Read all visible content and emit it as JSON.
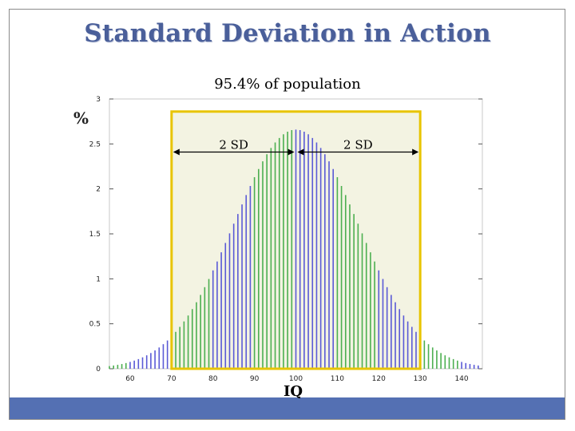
{
  "slide": {
    "title": "Standard Deviation in Action",
    "subtitle": "95.4% of population"
  },
  "colors": {
    "title": "#4a5f9a",
    "footer": "#5470b3",
    "green_bar": "#4caf50",
    "blue_bar": "#5a5ad6",
    "highlight_box": "#e8c400",
    "shaded_region": "#f3f3e2"
  },
  "chart_data": {
    "type": "bar",
    "xlabel": "IQ",
    "ylabel": "%",
    "xlim": [
      55,
      145
    ],
    "ylim": [
      0,
      3
    ],
    "x_ticks": [
      60,
      70,
      80,
      90,
      100,
      110,
      120,
      130,
      140
    ],
    "y_ticks": [
      0,
      0.5,
      1,
      1.5,
      2,
      2.5,
      3
    ],
    "x_tick_labels": [
      "60",
      "70",
      "80",
      "90",
      "100",
      "110",
      "120",
      "130",
      "140"
    ],
    "y_tick_labels": [
      "0",
      "0.5",
      "1",
      "1.5",
      "2",
      "2.5",
      "3"
    ],
    "distribution": {
      "mean": 100,
      "sd": 15
    },
    "bar_x_start": 55,
    "bar_x_end": 144,
    "bar_step": 1,
    "highlight_range": [
      70,
      130
    ],
    "annotations": [
      {
        "text": "2 SD",
        "from": 70,
        "to": 100
      },
      {
        "text": "2 SD",
        "from": 100,
        "to": 130
      }
    ]
  }
}
